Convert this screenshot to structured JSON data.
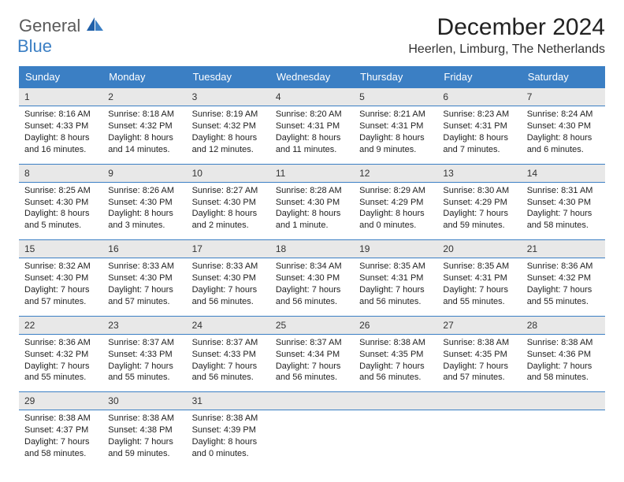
{
  "logo": {
    "main": "General",
    "sub": "Blue"
  },
  "title": "December 2024",
  "location": "Heerlen, Limburg, The Netherlands",
  "colors": {
    "header_bg": "#3b7fc4",
    "header_text": "#ffffff",
    "daynum_bg": "#e8e8e8",
    "border": "#3b7fc4",
    "body_text": "#222222"
  },
  "weekdays": [
    "Sunday",
    "Monday",
    "Tuesday",
    "Wednesday",
    "Thursday",
    "Friday",
    "Saturday"
  ],
  "weeks": [
    [
      {
        "n": "1",
        "sr": "Sunrise: 8:16 AM",
        "ss": "Sunset: 4:33 PM",
        "dl": "Daylight: 8 hours and 16 minutes."
      },
      {
        "n": "2",
        "sr": "Sunrise: 8:18 AM",
        "ss": "Sunset: 4:32 PM",
        "dl": "Daylight: 8 hours and 14 minutes."
      },
      {
        "n": "3",
        "sr": "Sunrise: 8:19 AM",
        "ss": "Sunset: 4:32 PM",
        "dl": "Daylight: 8 hours and 12 minutes."
      },
      {
        "n": "4",
        "sr": "Sunrise: 8:20 AM",
        "ss": "Sunset: 4:31 PM",
        "dl": "Daylight: 8 hours and 11 minutes."
      },
      {
        "n": "5",
        "sr": "Sunrise: 8:21 AM",
        "ss": "Sunset: 4:31 PM",
        "dl": "Daylight: 8 hours and 9 minutes."
      },
      {
        "n": "6",
        "sr": "Sunrise: 8:23 AM",
        "ss": "Sunset: 4:31 PM",
        "dl": "Daylight: 8 hours and 7 minutes."
      },
      {
        "n": "7",
        "sr": "Sunrise: 8:24 AM",
        "ss": "Sunset: 4:30 PM",
        "dl": "Daylight: 8 hours and 6 minutes."
      }
    ],
    [
      {
        "n": "8",
        "sr": "Sunrise: 8:25 AM",
        "ss": "Sunset: 4:30 PM",
        "dl": "Daylight: 8 hours and 5 minutes."
      },
      {
        "n": "9",
        "sr": "Sunrise: 8:26 AM",
        "ss": "Sunset: 4:30 PM",
        "dl": "Daylight: 8 hours and 3 minutes."
      },
      {
        "n": "10",
        "sr": "Sunrise: 8:27 AM",
        "ss": "Sunset: 4:30 PM",
        "dl": "Daylight: 8 hours and 2 minutes."
      },
      {
        "n": "11",
        "sr": "Sunrise: 8:28 AM",
        "ss": "Sunset: 4:30 PM",
        "dl": "Daylight: 8 hours and 1 minute."
      },
      {
        "n": "12",
        "sr": "Sunrise: 8:29 AM",
        "ss": "Sunset: 4:29 PM",
        "dl": "Daylight: 8 hours and 0 minutes."
      },
      {
        "n": "13",
        "sr": "Sunrise: 8:30 AM",
        "ss": "Sunset: 4:29 PM",
        "dl": "Daylight: 7 hours and 59 minutes."
      },
      {
        "n": "14",
        "sr": "Sunrise: 8:31 AM",
        "ss": "Sunset: 4:30 PM",
        "dl": "Daylight: 7 hours and 58 minutes."
      }
    ],
    [
      {
        "n": "15",
        "sr": "Sunrise: 8:32 AM",
        "ss": "Sunset: 4:30 PM",
        "dl": "Daylight: 7 hours and 57 minutes."
      },
      {
        "n": "16",
        "sr": "Sunrise: 8:33 AM",
        "ss": "Sunset: 4:30 PM",
        "dl": "Daylight: 7 hours and 57 minutes."
      },
      {
        "n": "17",
        "sr": "Sunrise: 8:33 AM",
        "ss": "Sunset: 4:30 PM",
        "dl": "Daylight: 7 hours and 56 minutes."
      },
      {
        "n": "18",
        "sr": "Sunrise: 8:34 AM",
        "ss": "Sunset: 4:30 PM",
        "dl": "Daylight: 7 hours and 56 minutes."
      },
      {
        "n": "19",
        "sr": "Sunrise: 8:35 AM",
        "ss": "Sunset: 4:31 PM",
        "dl": "Daylight: 7 hours and 56 minutes."
      },
      {
        "n": "20",
        "sr": "Sunrise: 8:35 AM",
        "ss": "Sunset: 4:31 PM",
        "dl": "Daylight: 7 hours and 55 minutes."
      },
      {
        "n": "21",
        "sr": "Sunrise: 8:36 AM",
        "ss": "Sunset: 4:32 PM",
        "dl": "Daylight: 7 hours and 55 minutes."
      }
    ],
    [
      {
        "n": "22",
        "sr": "Sunrise: 8:36 AM",
        "ss": "Sunset: 4:32 PM",
        "dl": "Daylight: 7 hours and 55 minutes."
      },
      {
        "n": "23",
        "sr": "Sunrise: 8:37 AM",
        "ss": "Sunset: 4:33 PM",
        "dl": "Daylight: 7 hours and 55 minutes."
      },
      {
        "n": "24",
        "sr": "Sunrise: 8:37 AM",
        "ss": "Sunset: 4:33 PM",
        "dl": "Daylight: 7 hours and 56 minutes."
      },
      {
        "n": "25",
        "sr": "Sunrise: 8:37 AM",
        "ss": "Sunset: 4:34 PM",
        "dl": "Daylight: 7 hours and 56 minutes."
      },
      {
        "n": "26",
        "sr": "Sunrise: 8:38 AM",
        "ss": "Sunset: 4:35 PM",
        "dl": "Daylight: 7 hours and 56 minutes."
      },
      {
        "n": "27",
        "sr": "Sunrise: 8:38 AM",
        "ss": "Sunset: 4:35 PM",
        "dl": "Daylight: 7 hours and 57 minutes."
      },
      {
        "n": "28",
        "sr": "Sunrise: 8:38 AM",
        "ss": "Sunset: 4:36 PM",
        "dl": "Daylight: 7 hours and 58 minutes."
      }
    ],
    [
      {
        "n": "29",
        "sr": "Sunrise: 8:38 AM",
        "ss": "Sunset: 4:37 PM",
        "dl": "Daylight: 7 hours and 58 minutes."
      },
      {
        "n": "30",
        "sr": "Sunrise: 8:38 AM",
        "ss": "Sunset: 4:38 PM",
        "dl": "Daylight: 7 hours and 59 minutes."
      },
      {
        "n": "31",
        "sr": "Sunrise: 8:38 AM",
        "ss": "Sunset: 4:39 PM",
        "dl": "Daylight: 8 hours and 0 minutes."
      },
      {
        "n": "",
        "sr": "",
        "ss": "",
        "dl": "",
        "empty": true
      },
      {
        "n": "",
        "sr": "",
        "ss": "",
        "dl": "",
        "empty": true
      },
      {
        "n": "",
        "sr": "",
        "ss": "",
        "dl": "",
        "empty": true
      },
      {
        "n": "",
        "sr": "",
        "ss": "",
        "dl": "",
        "empty": true
      }
    ]
  ]
}
